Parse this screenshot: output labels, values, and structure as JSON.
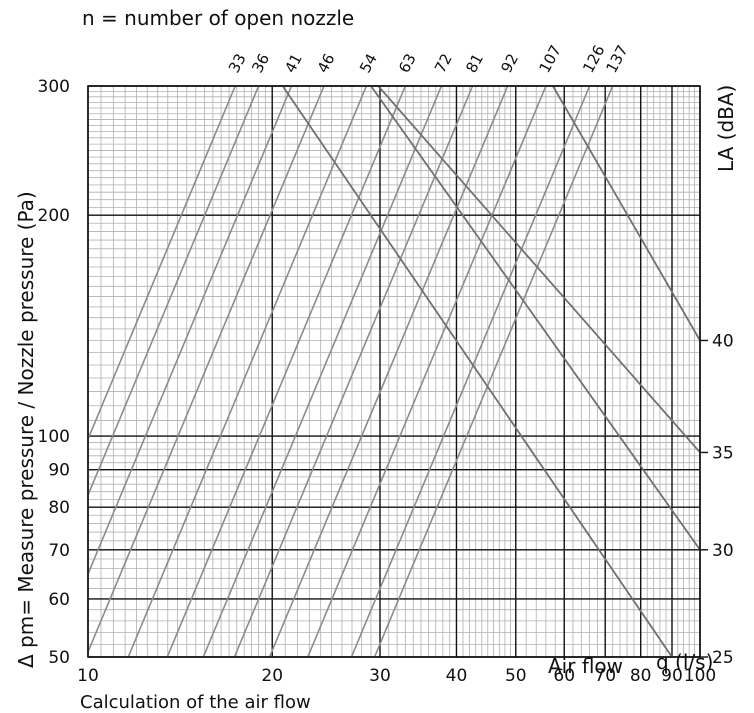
{
  "chart_data": {
    "type": "line",
    "title": "n = number of open nozzle",
    "ylabel": "Δ pm= Measure pressure / Nozzle pressure (Pa)",
    "ylabel_right": "LA (dBA)",
    "xlabel": "Air flow",
    "xunit": "q (l/s)",
    "caption": "Calculation of the air flow",
    "x_scale": "log",
    "y_scale": "log",
    "xlim": [
      10,
      100
    ],
    "ylim": [
      50,
      300
    ],
    "x_ticks": [
      10,
      20,
      30,
      40,
      50,
      60,
      70,
      80,
      90,
      100
    ],
    "x_tick_labels": [
      "10",
      "20",
      "30",
      "40",
      "50",
      "60",
      "70",
      "80",
      "90",
      "100"
    ],
    "y_ticks": [
      50,
      60,
      70,
      80,
      90,
      100,
      200,
      300
    ],
    "y_tick_labels": [
      "50",
      "60",
      "70",
      "80",
      "90",
      "100",
      "200",
      "300"
    ],
    "right_ticks": [
      25,
      30,
      35,
      40
    ],
    "right_tick_labels": [
      "25",
      "30",
      "35",
      "40"
    ],
    "grid": true,
    "nozzle_lines": [
      {
        "label": "33",
        "x_at_ymax": 17.4
      },
      {
        "label": "36",
        "x_at_ymax": 19.0
      },
      {
        "label": "41",
        "x_at_ymax": 21.5
      },
      {
        "label": "46",
        "x_at_ymax": 24.3
      },
      {
        "label": "54",
        "x_at_ymax": 28.5
      },
      {
        "label": "63",
        "x_at_ymax": 33.0
      },
      {
        "label": "72",
        "x_at_ymax": 37.8
      },
      {
        "label": "81",
        "x_at_ymax": 42.5
      },
      {
        "label": "92",
        "x_at_ymax": 48.5
      },
      {
        "label": "107",
        "x_at_ymax": 56.0
      },
      {
        "label": "126",
        "x_at_ymax": 66.0
      },
      {
        "label": "137",
        "x_at_ymax": 72.0
      }
    ],
    "sound_lines": [
      {
        "label": "25",
        "points": [
          [
            20.8,
            300
          ],
          [
            90,
            50
          ]
        ]
      },
      {
        "label": "30",
        "points": [
          [
            29.0,
            300
          ],
          [
            100,
            70
          ]
        ]
      },
      {
        "label": "35",
        "points": [
          [
            29.8,
            300
          ],
          [
            100,
            95
          ]
        ]
      },
      {
        "label": "40",
        "points": [
          [
            57.5,
            300
          ],
          [
            100,
            135
          ]
        ]
      }
    ],
    "colors": {
      "major_grid": "#111111",
      "minor_grid": "#b0b0b0",
      "nozzle": "#8c8c8c",
      "sound": "#707070"
    }
  }
}
